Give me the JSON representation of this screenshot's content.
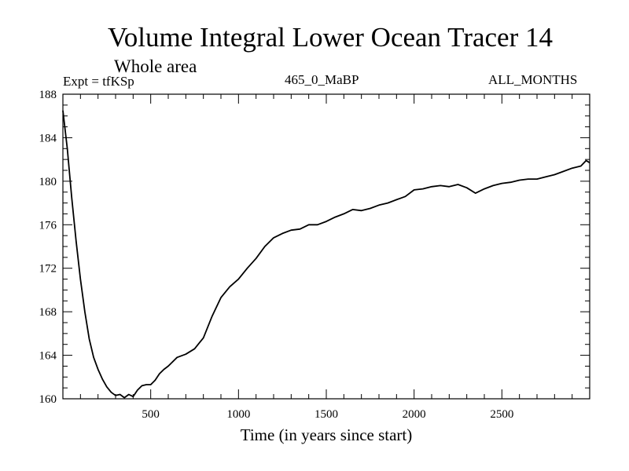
{
  "header": {
    "title": "Volume Integral Lower Ocean Tracer 14",
    "subtitle": "Whole area",
    "experiment": "Expt = tfKSp",
    "period": "465_0_MaBP",
    "months": "ALL_MONTHS"
  },
  "chart_data": {
    "type": "line",
    "title": "Volume Integral Lower Ocean Tracer 14",
    "xlabel": "Time (in years since start)",
    "ylabel": "",
    "xlim": [
      0,
      3000
    ],
    "ylim": [
      160,
      188
    ],
    "x_ticks": [
      500,
      1000,
      1500,
      2000,
      2500
    ],
    "y_ticks": [
      160,
      164,
      168,
      172,
      176,
      180,
      184,
      188
    ],
    "grid": false,
    "series": [
      {
        "name": "Tracer 14",
        "color": "#000000",
        "x": [
          0,
          25,
          50,
          75,
          100,
          125,
          150,
          175,
          200,
          225,
          250,
          275,
          300,
          325,
          350,
          375,
          400,
          425,
          450,
          475,
          500,
          525,
          550,
          575,
          600,
          650,
          700,
          750,
          800,
          850,
          900,
          950,
          1000,
          1050,
          1100,
          1150,
          1200,
          1250,
          1300,
          1350,
          1400,
          1450,
          1500,
          1550,
          1600,
          1650,
          1700,
          1750,
          1800,
          1850,
          1900,
          1950,
          2000,
          2050,
          2100,
          2150,
          2200,
          2250,
          2300,
          2350,
          2400,
          2450,
          2500,
          2550,
          2600,
          2650,
          2700,
          2750,
          2800,
          2850,
          2900,
          2950,
          2980,
          3000
        ],
        "y": [
          186.5,
          183.0,
          178.5,
          174.5,
          171.0,
          168.0,
          165.5,
          163.8,
          162.7,
          161.8,
          161.1,
          160.6,
          160.3,
          160.4,
          160.1,
          160.4,
          160.2,
          160.8,
          161.2,
          161.3,
          161.3,
          161.7,
          162.3,
          162.7,
          163.0,
          163.8,
          164.1,
          164.6,
          165.6,
          167.6,
          169.3,
          170.3,
          171.0,
          172.0,
          172.9,
          174.0,
          174.8,
          175.2,
          175.5,
          175.6,
          176.0,
          176.0,
          176.3,
          176.7,
          177.0,
          177.4,
          177.3,
          177.5,
          177.8,
          178.0,
          178.3,
          178.6,
          179.2,
          179.3,
          179.5,
          179.6,
          179.5,
          179.7,
          179.4,
          178.9,
          179.3,
          179.6,
          179.8,
          179.9,
          180.1,
          180.2,
          180.2,
          180.4,
          180.6,
          180.9,
          181.2,
          181.4,
          181.9,
          181.7
        ]
      }
    ]
  }
}
